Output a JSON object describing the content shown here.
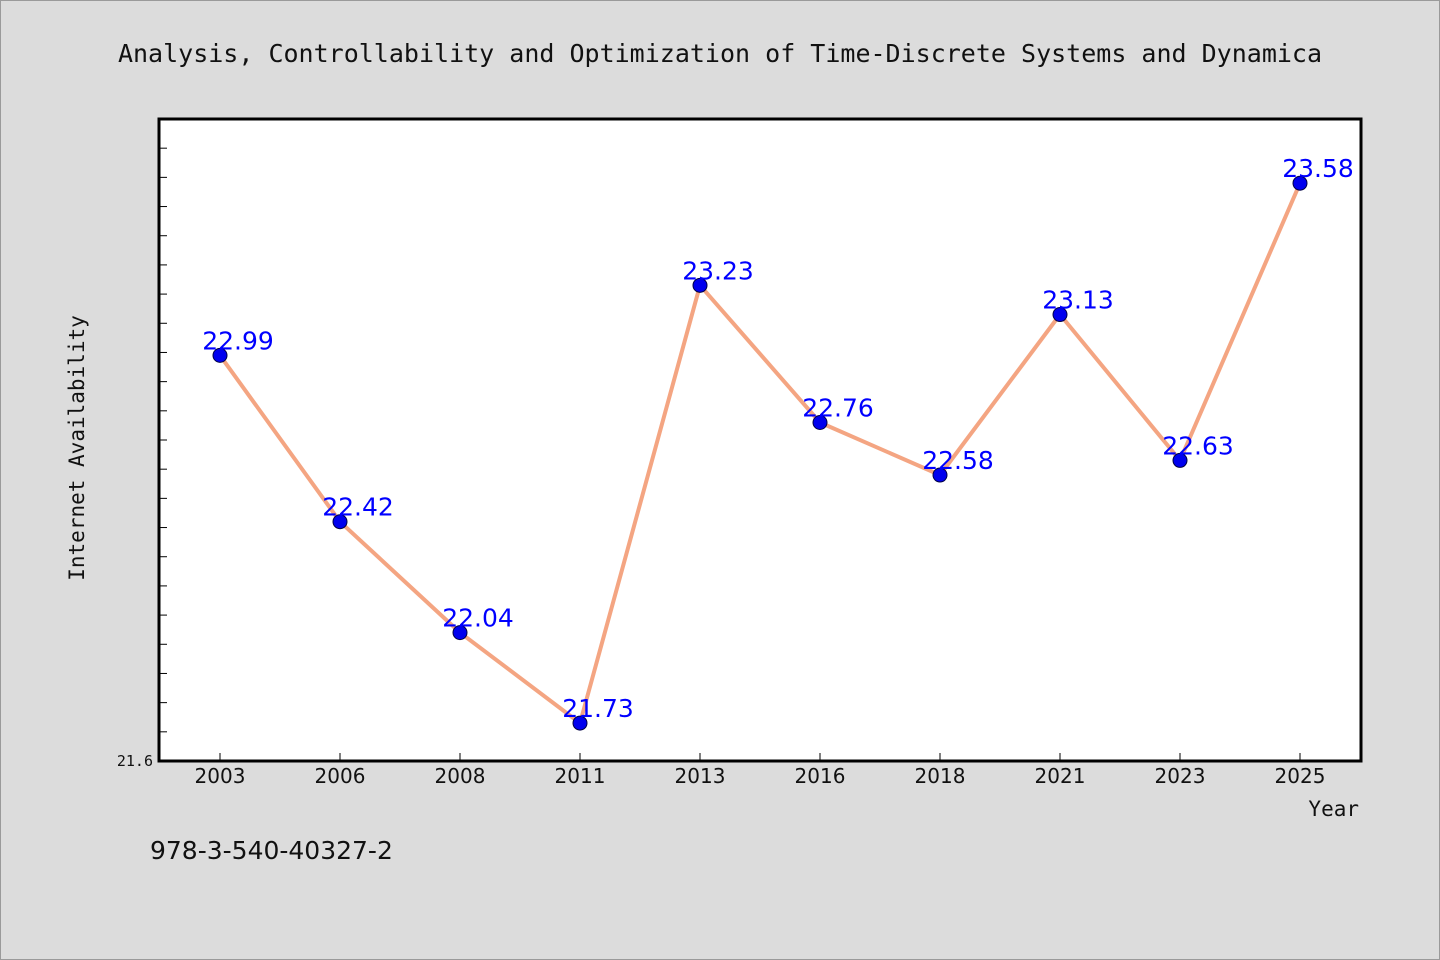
{
  "chart_data": {
    "type": "line",
    "title": "Analysis, Controllability and Optimization of Time-Discrete Systems and Dynamica",
    "xlabel": "Year",
    "ylabel": "Internet Availability",
    "categories": [
      "2003",
      "2006",
      "2008",
      "2011",
      "2013",
      "2016",
      "2018",
      "2021",
      "2023",
      "2025"
    ],
    "series": [
      {
        "values": [
          22.99,
          22.42,
          22.04,
          21.73,
          23.23,
          22.76,
          22.58,
          23.13,
          22.63,
          23.58
        ]
      }
    ],
    "data_labels": [
      "22.99",
      "22.42",
      "22.04",
      "21.73",
      "23.23",
      "22.76",
      "22.58",
      "23.13",
      "22.63",
      "23.58"
    ],
    "ylim": [
      21.6,
      23.8
    ],
    "y_min_label": "21.6",
    "grid": false,
    "legend": "none",
    "colors": {
      "line": "#f4a582",
      "marker": "#0000ee",
      "label": "#0000ff",
      "background": "#dcdcdc",
      "plot_background": "#ffffff"
    }
  },
  "footer": {
    "code": "978-3-540-40327-2"
  }
}
